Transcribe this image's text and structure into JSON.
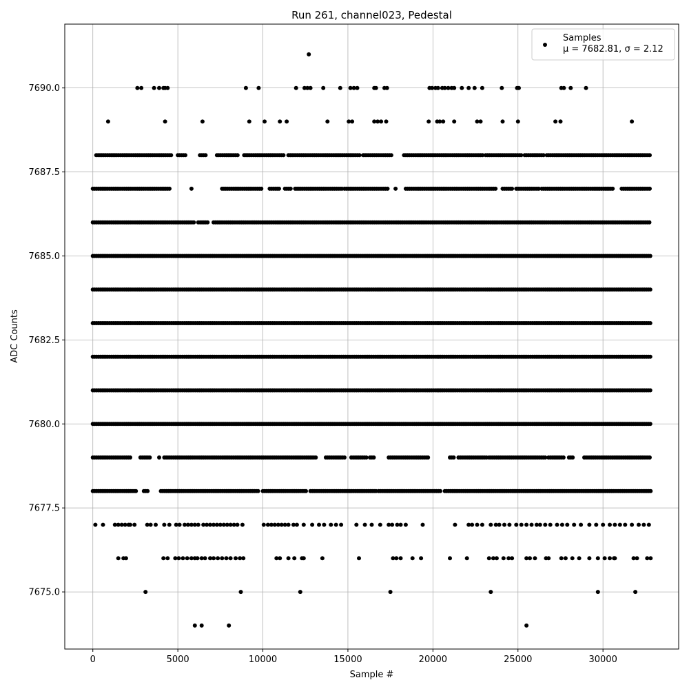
{
  "chart_data": {
    "type": "scatter",
    "title": "Run 261, channel023, Pedestal",
    "xlabel": "Sample #",
    "ylabel": "ADC Counts",
    "xlim": [
      -1650,
      34450
    ],
    "ylim": [
      7673.3,
      7691.9
    ],
    "xticks": [
      0,
      5000,
      10000,
      15000,
      20000,
      25000,
      30000
    ],
    "xtick_labels": [
      "0",
      "5000",
      "10000",
      "15000",
      "20000",
      "25000",
      "30000"
    ],
    "yticks": [
      7675.0,
      7677.5,
      7680.0,
      7682.5,
      7685.0,
      7687.5,
      7690.0
    ],
    "ytick_labels": [
      "7675.0",
      "7677.5",
      "7680.0",
      "7682.5",
      "7685.0",
      "7687.5",
      "7690.0"
    ],
    "grid": true,
    "legend_position": "top-right",
    "marker_color": "#000000",
    "series": [
      {
        "name": "Samples",
        "stats_label": "μ = 7682.81, σ = 2.12",
        "x_range": [
          0,
          32767
        ],
        "levels": [
          {
            "y": 7691,
            "x": [
              12700
            ]
          },
          {
            "y": 7690,
            "x": [
              2620,
              2850,
              3600,
              3900,
              4150,
              4250,
              4400,
              9000,
              9750,
              11950,
              12450,
              12620,
              12800,
              13550,
              14550,
              15150,
              15350,
              15550,
              16550,
              16650,
              17150,
              17300,
              19800,
              19950,
              20150,
              20300,
              20550,
              20700,
              20900,
              21100,
              21250,
              21700,
              22100,
              22450,
              22900,
              24050,
              24950,
              25050,
              27550,
              27700,
              28100,
              29000
            ]
          },
          {
            "y": 7689,
            "x": [
              900,
              4250,
              6450,
              9200,
              10100,
              11000,
              11400,
              13800,
              15050,
              15250,
              16550,
              16750,
              16950,
              17250,
              19750,
              20250,
              20400,
              20600,
              21250,
              22600,
              22800,
              24100,
              25000,
              27200,
              27500,
              31700
            ]
          },
          {
            "y": 7688,
            "x": [
              [
                200,
                4600
              ],
              [
                5000,
                5500
              ],
              [
                6300,
                6700
              ],
              [
                7300,
                8600
              ],
              [
                8900,
                11300
              ],
              [
                11500,
                15700
              ],
              [
                15900,
                17600
              ],
              [
                18300,
                23000
              ],
              [
                23100,
                25200
              ],
              [
                25400,
                26500
              ],
              [
                26700,
                32800
              ]
            ]
          },
          {
            "y": 7687,
            "x": [
              [
                0,
                4600
              ],
              [
                5800,
                5900
              ],
              [
                7600,
                10000
              ],
              [
                10400,
                11000
              ],
              [
                11300,
                11700
              ],
              [
                11900,
                14700
              ],
              [
                14800,
                17400
              ],
              [
                17800,
                17900
              ],
              [
                18400,
                23700
              ],
              [
                24100,
                24700
              ],
              [
                24900,
                26300
              ],
              [
                26400,
                29700
              ],
              [
                29800,
                30600
              ],
              [
                31100,
                32800
              ]
            ]
          },
          {
            "y": 7686,
            "x": [
              [
                0,
                6000
              ],
              [
                6200,
                6800
              ],
              [
                7100,
                32800
              ]
            ]
          },
          {
            "y": 7685,
            "x": [
              [
                0,
                32800
              ]
            ]
          },
          {
            "y": 7684,
            "x": [
              [
                0,
                32800
              ]
            ]
          },
          {
            "y": 7683,
            "x": [
              [
                0,
                32800
              ]
            ]
          },
          {
            "y": 7682,
            "x": [
              [
                0,
                32800
              ]
            ]
          },
          {
            "y": 7681,
            "x": [
              [
                0,
                32800
              ]
            ]
          },
          {
            "y": 7680,
            "x": [
              [
                0,
                32800
              ]
            ]
          },
          {
            "y": 7679,
            "x": [
              [
                0,
                2300
              ],
              [
                2800,
                3400
              ],
              [
                3900,
                4000
              ],
              [
                4200,
                13200
              ],
              [
                13700,
                14900
              ],
              [
                15200,
                16100
              ],
              [
                16300,
                16600
              ],
              [
                17400,
                19800
              ],
              [
                21000,
                21300
              ],
              [
                21500,
                23200
              ],
              [
                23300,
                26700
              ],
              [
                26800,
                27700
              ],
              [
                28000,
                28300
              ],
              [
                28900,
                32800
              ]
            ]
          },
          {
            "y": 7678,
            "x": [
              [
                0,
                2600
              ],
              [
                3000,
                3300
              ],
              [
                4000,
                9800
              ],
              [
                10000,
                12600
              ],
              [
                12800,
                14900
              ],
              [
                15000,
                16700
              ],
              [
                16800,
                20500
              ],
              [
                20700,
                32800
              ]
            ]
          },
          {
            "y": 7677,
            "x": [
              150,
              600,
              1300,
              1500,
              1700,
              1900,
              2100,
              2200,
              2450,
              3200,
              3400,
              3700,
              4200,
              4500,
              4900,
              5100,
              5400,
              5600,
              5800,
              6000,
              6200,
              6500,
              6700,
              6900,
              7100,
              7300,
              7500,
              7700,
              7900,
              8100,
              8300,
              8500,
              8800,
              10050,
              10300,
              10500,
              10700,
              10900,
              11100,
              11300,
              11500,
              11800,
              12000,
              12400,
              12900,
              13300,
              13600,
              14000,
              14300,
              14600,
              15500,
              16000,
              16400,
              16900,
              17400,
              17600,
              17900,
              18100,
              18400,
              19400,
              21300,
              22100,
              22300,
              22600,
              22900,
              23400,
              23700,
              23900,
              24200,
              24500,
              24900,
              25200,
              25500,
              25800,
              26100,
              26300,
              26600,
              26900,
              27300,
              27600,
              27900,
              28300,
              28700,
              29200,
              29600,
              30000,
              30400,
              30700,
              31000,
              31300,
              31700,
              32100,
              32400,
              32700
            ]
          },
          {
            "y": 7676,
            "x": [
              1500,
              1800,
              1950,
              4150,
              4400,
              4850,
              5050,
              5300,
              5550,
              5800,
              6000,
              6150,
              6400,
              6600,
              6900,
              7100,
              7350,
              7600,
              7850,
              8100,
              8400,
              8650,
              8850,
              10800,
              11000,
              11500,
              11850,
              12300,
              12400,
              13500,
              15650,
              17650,
              17850,
              18100,
              18800,
              19300,
              21000,
              22000,
              23300,
              23550,
              23750,
              24150,
              24450,
              24650,
              25500,
              25700,
              26000,
              26650,
              26800,
              27550,
              27800,
              28200,
              28600,
              29200,
              29700,
              30100,
              30400,
              30650,
              30700,
              31800,
              32000,
              32600,
              32800
            ]
          },
          {
            "y": 7675,
            "x": [
              3100,
              8700,
              12200,
              17500,
              23400,
              29700,
              31900
            ]
          },
          {
            "y": 7674,
            "x": [
              6000,
              6400,
              8000,
              25500
            ]
          }
        ]
      }
    ]
  }
}
